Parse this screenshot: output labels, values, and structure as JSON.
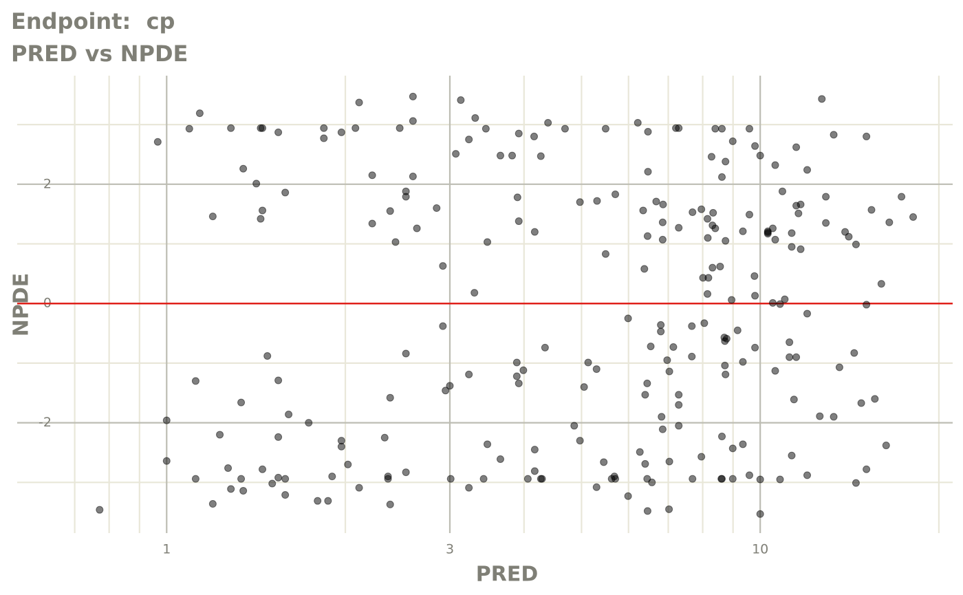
{
  "chart_data": {
    "type": "scatter",
    "title": "Endpoint:  cp",
    "subtitle": "PRED vs NPDE",
    "x_label": "PRED",
    "y_label": "NPDE",
    "x_log": true,
    "xlim": [
      0.56,
      21.1
    ],
    "ylim": [
      -3.85,
      3.82
    ],
    "xticks": [
      1,
      3,
      10
    ],
    "yticks": [
      -2,
      0,
      2
    ],
    "x_minor_grid": [
      0.7,
      0.8,
      0.9,
      2,
      4,
      5,
      6,
      7,
      8,
      9,
      20
    ],
    "y_minor_grid": [
      -3,
      -1,
      1,
      3
    ],
    "grid": true,
    "hline": 0,
    "hline_color": "#e0201a",
    "color": "#000000",
    "opacity": 0.5,
    "x": [
      0.771,
      0.966,
      1.0,
      1.0,
      1.092,
      1.119,
      1.119,
      1.137,
      1.196,
      1.196,
      1.229,
      1.269,
      1.283,
      1.283,
      1.335,
      1.335,
      1.346,
      1.346,
      1.416,
      1.44,
      1.44,
      1.45,
      1.45,
      1.45,
      1.478,
      1.506,
      1.542,
      1.542,
      1.542,
      1.542,
      1.584,
      1.584,
      1.584,
      1.605,
      1.735,
      1.796,
      1.84,
      1.84,
      1.87,
      1.9,
      1.97,
      1.97,
      1.97,
      2.02,
      2.08,
      2.11,
      2.11,
      2.22,
      2.22,
      2.33,
      2.36,
      2.36,
      2.38,
      2.38,
      2.38,
      2.43,
      2.47,
      2.53,
      2.53,
      2.53,
      2.53,
      2.6,
      2.6,
      2.6,
      2.64,
      2.85,
      2.92,
      2.92,
      2.95,
      3.0,
      3.01,
      3.07,
      3.13,
      3.23,
      3.23,
      3.23,
      3.3,
      3.31,
      3.42,
      3.45,
      3.47,
      3.47,
      3.65,
      3.65,
      3.82,
      3.89,
      3.89,
      3.9,
      3.92,
      3.92,
      3.92,
      3.99,
      4.06,
      4.16,
      4.17,
      4.17,
      4.17,
      4.27,
      4.27,
      4.29,
      4.34,
      4.39,
      4.69,
      4.86,
      4.97,
      4.97,
      5.05,
      5.13,
      5.3,
      5.3,
      5.31,
      5.45,
      5.49,
      5.49,
      5.62,
      5.68,
      5.7,
      5.7,
      5.99,
      5.99,
      6.22,
      6.27,
      6.35,
      6.38,
      6.4,
      6.4,
      6.45,
      6.46,
      6.45,
      6.46,
      6.47,
      6.47,
      6.54,
      6.57,
      6.68,
      6.8,
      6.8,
      6.82,
      6.85,
      6.85,
      6.85,
      6.86,
      6.97,
      7.02,
      7.03,
      7.03,
      7.14,
      7.21,
      7.29,
      7.29,
      7.29,
      7.29,
      7.29,
      7.67,
      7.67,
      7.69,
      7.69,
      7.96,
      7.96,
      8.01,
      8.05,
      8.15,
      8.15,
      8.16,
      8.18,
      8.28,
      8.31,
      8.31,
      8.33,
      8.4,
      8.4,
      8.56,
      8.62,
      8.62,
      8.62,
      8.6,
      8.62,
      8.7,
      8.72,
      8.74,
      8.74,
      8.72,
      8.74,
      8.78,
      8.95,
      8.99,
      8.99,
      8.99,
      9.16,
      9.35,
      9.35,
      9.35,
      9.59,
      9.59,
      9.59,
      9.78,
      9.8,
      9.8,
      9.8,
      10.0,
      10.0,
      10.0,
      10.3,
      10.3,
      10.3,
      10.5,
      10.5,
      10.6,
      10.6,
      10.6,
      10.8,
      10.8,
      10.9,
      11.0,
      11.2,
      11.2,
      11.3,
      11.3,
      11.3,
      11.4,
      11.5,
      11.5,
      11.5,
      11.6,
      11.7,
      11.7,
      12.0,
      12.0,
      12.0,
      12.6,
      12.7,
      12.9,
      12.9,
      13.3,
      13.3,
      13.6,
      13.9,
      14.1,
      14.4,
      14.5,
      14.5,
      14.8,
      15.1,
      15.1,
      15.1,
      15.4,
      15.6,
      16.0,
      16.3,
      16.5,
      17.3,
      18.1
    ],
    "values": [
      -3.46,
      2.71,
      -1.96,
      -2.64,
      2.93,
      -1.3,
      -2.94,
      3.19,
      1.46,
      -3.36,
      -2.2,
      -2.76,
      -3.11,
      2.94,
      -1.66,
      -2.94,
      -3.14,
      2.26,
      2.01,
      1.42,
      2.94,
      2.94,
      1.56,
      -2.78,
      -0.88,
      -3.02,
      2.87,
      -1.29,
      -2.24,
      -2.92,
      1.86,
      -2.94,
      -3.21,
      -1.86,
      -2.0,
      -3.31,
      2.94,
      2.77,
      -3.31,
      -2.9,
      2.87,
      -2.3,
      -2.4,
      -2.7,
      2.94,
      3.37,
      -3.09,
      2.15,
      1.34,
      -2.25,
      -2.9,
      -2.94,
      -1.58,
      1.55,
      -3.37,
      1.03,
      2.94,
      1.88,
      1.79,
      -0.84,
      -2.83,
      3.47,
      3.06,
      2.13,
      1.26,
      1.6,
      0.63,
      -0.38,
      -1.46,
      -1.38,
      -2.94,
      2.51,
      3.41,
      2.75,
      -1.19,
      -3.09,
      0.18,
      3.11,
      -2.94,
      2.93,
      1.03,
      -2.36,
      2.48,
      -2.61,
      2.48,
      -0.99,
      -1.22,
      1.78,
      2.85,
      1.38,
      -1.34,
      -1.12,
      -2.94,
      2.8,
      1.2,
      -2.45,
      -2.81,
      2.47,
      -2.94,
      -2.94,
      -0.74,
      3.03,
      2.93,
      -2.05,
      1.7,
      -2.3,
      -1.4,
      -0.99,
      -1.1,
      -3.08,
      1.72,
      -2.66,
      2.93,
      0.83,
      -2.94,
      -2.9,
      1.83,
      -2.94,
      -3.23,
      -0.25,
      3.03,
      -2.49,
      1.56,
      0.58,
      -1.53,
      -2.69,
      -2.94,
      1.13,
      -1.34,
      -3.48,
      2.88,
      2.21,
      -0.72,
      -3.0,
      1.71,
      -0.36,
      -0.47,
      -1.9,
      1.36,
      1.07,
      -2.11,
      1.66,
      -0.95,
      -3.45,
      -1.14,
      -2.65,
      -0.73,
      2.94,
      2.94,
      1.27,
      -1.53,
      -1.7,
      -2.05,
      -0.38,
      -0.89,
      1.53,
      -2.94,
      -2.57,
      1.58,
      0.43,
      -0.33,
      1.42,
      0.16,
      1.1,
      0.43,
      2.46,
      0.6,
      1.31,
      1.52,
      1.26,
      2.93,
      0.62,
      2.12,
      2.93,
      -2.23,
      -2.94,
      -2.94,
      -0.57,
      -0.63,
      1.05,
      2.38,
      -1.04,
      -1.19,
      -0.59,
      0.06,
      2.72,
      -2.43,
      -2.94,
      -0.45,
      1.21,
      -0.98,
      -2.36,
      2.93,
      1.49,
      -2.88,
      0.46,
      2.64,
      0.13,
      -0.74,
      2.48,
      -2.95,
      -3.53,
      1.17,
      1.21,
      1.19,
      1.26,
      0.01,
      1.07,
      2.32,
      -1.13,
      -0.01,
      -2.95,
      1.88,
      0.07,
      -0.9,
      -0.65,
      0.95,
      1.18,
      -2.55,
      -1.61,
      1.64,
      2.62,
      -0.9,
      1.51,
      1.66,
      0.91,
      2.24,
      -0.17,
      -2.88,
      -1.89,
      3.43,
      1.79,
      1.35,
      2.83,
      -1.9,
      -1.07,
      1.2,
      1.12,
      -0.83,
      -3.01,
      0.99,
      -1.67,
      2.8,
      -0.02,
      -2.78,
      1.57,
      -1.6,
      0.33,
      -2.38,
      1.36,
      1.79,
      1.45
    ]
  }
}
